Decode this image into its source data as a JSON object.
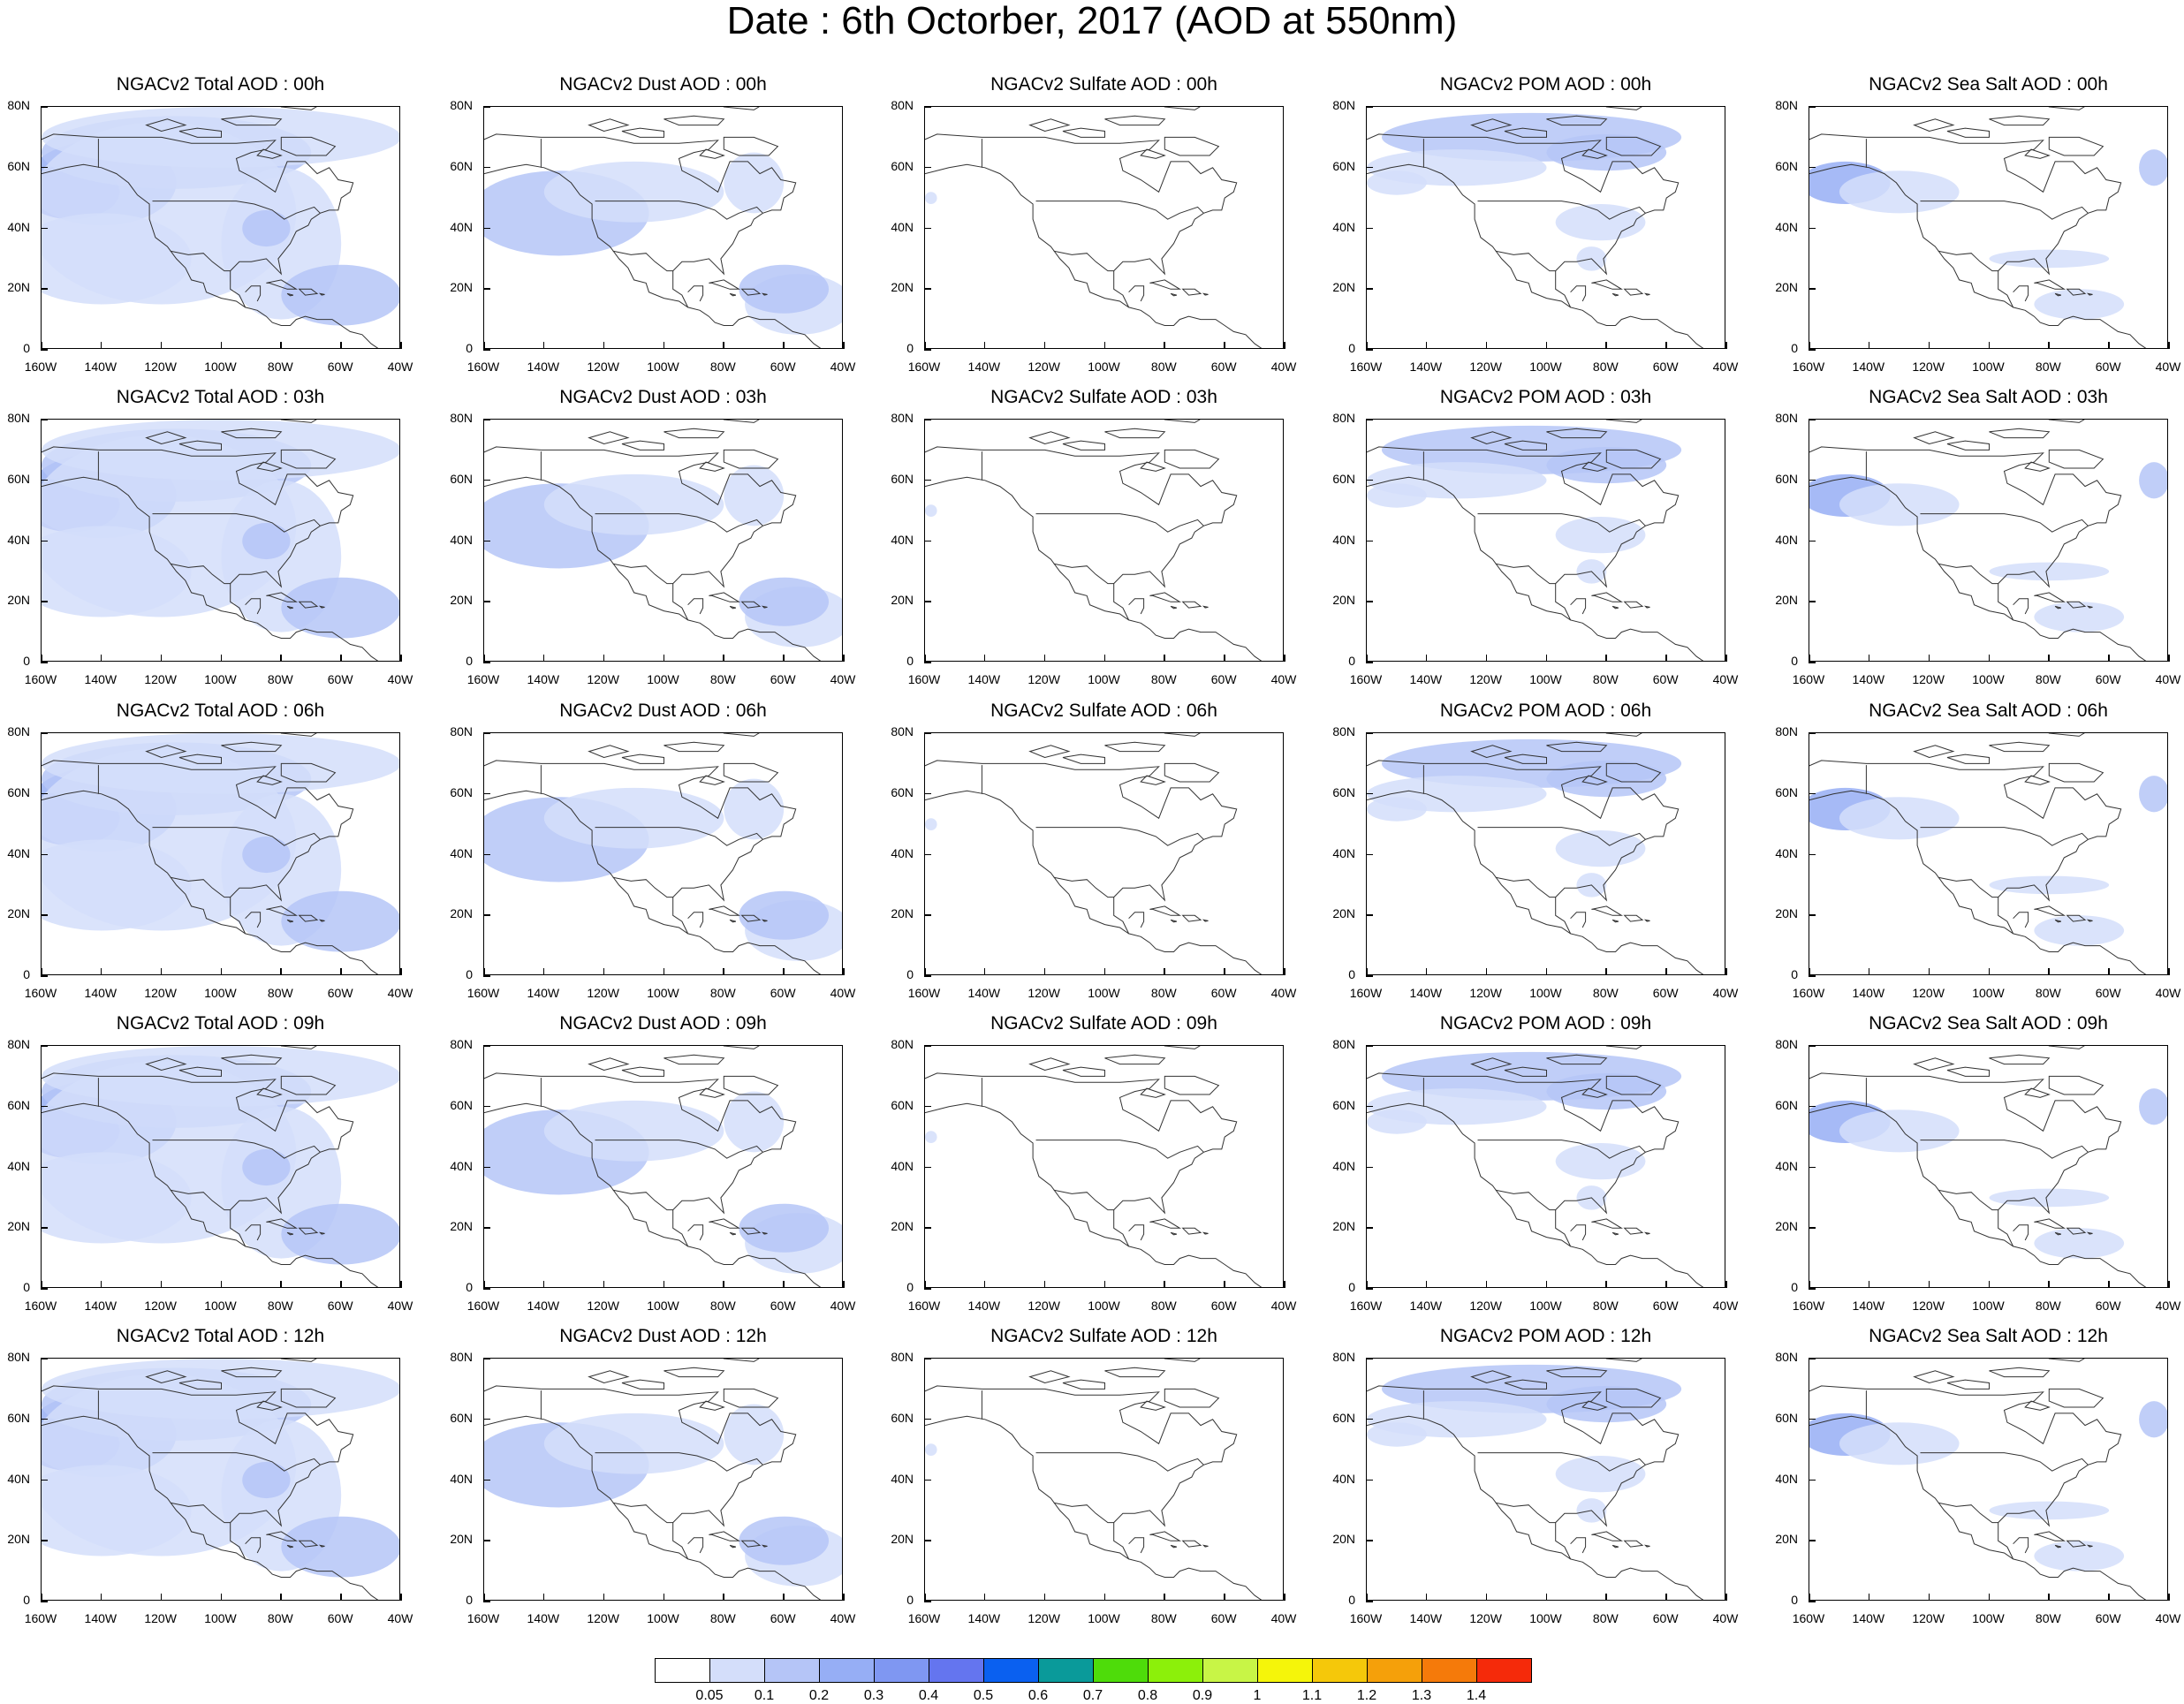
{
  "title": "Date : 6th Octorber, 2017 (AOD at 550nm)",
  "map": {
    "y_axis_labels": [
      "80N",
      "60N",
      "40N",
      "20N",
      "0"
    ],
    "x_axis_labels": [
      "160W",
      "140W",
      "120W",
      "100W",
      "80W",
      "60W",
      "40W"
    ],
    "extent": {
      "lon": [
        -160,
        -40
      ],
      "lat": [
        0,
        80
      ]
    }
  },
  "columns": [
    {
      "name": "Total",
      "intensity": 3
    },
    {
      "name": "Dust",
      "intensity": 2
    },
    {
      "name": "Sulfate",
      "intensity": 0
    },
    {
      "name": "POM",
      "intensity": 1.5
    },
    {
      "name": "Sea Salt",
      "intensity": 1.5
    }
  ],
  "panels": [
    [
      "NGACv2 Total AOD : 00h",
      "NGACv2 Dust AOD : 00h",
      "NGACv2 Sulfate AOD : 00h",
      "NGACv2 POM AOD : 00h",
      "NGACv2 Sea Salt AOD : 00h"
    ],
    [
      "NGACv2 Total AOD : 03h",
      "NGACv2 Dust AOD : 03h",
      "NGACv2 Sulfate AOD : 03h",
      "NGACv2 POM AOD : 03h",
      "NGACv2 Sea Salt AOD : 03h"
    ],
    [
      "NGACv2 Total AOD : 06h",
      "NGACv2 Dust AOD : 06h",
      "NGACv2 Sulfate AOD : 06h",
      "NGACv2 POM AOD : 06h",
      "NGACv2 Sea Salt AOD : 06h"
    ],
    [
      "NGACv2 Total AOD : 09h",
      "NGACv2 Dust AOD : 09h",
      "NGACv2 Sulfate AOD : 09h",
      "NGACv2 POM AOD : 09h",
      "NGACv2 Sea Salt  AOD : 09h"
    ],
    [
      "NGACv2 Total AOD  : 12h",
      "NGACv2 Dust AOD : 12h",
      "NGACv2 Sulfate AOD : 12h",
      "NGACv2 POM  AOD : 12h",
      "NGACv2 Sea Salt  AOD : 12h"
    ]
  ],
  "colorbar": {
    "colors": [
      "#ffffff",
      "#d4defa",
      "#b5c5f7",
      "#96aef5",
      "#7f97f2",
      "#6475ef",
      "#0a60f0",
      "#0a9a9a",
      "#4edc0a",
      "#8cf00a",
      "#c8f546",
      "#f5f50a",
      "#f5c80a",
      "#f5a00a",
      "#f57a0a",
      "#f52a0a"
    ],
    "labels": [
      "0.05",
      "0.1",
      "0.2",
      "0.3",
      "0.4",
      "0.5",
      "0.6",
      "0.7",
      "0.8",
      "0.9",
      "1",
      "1.1",
      "1.2",
      "1.3",
      "1.4"
    ]
  }
}
